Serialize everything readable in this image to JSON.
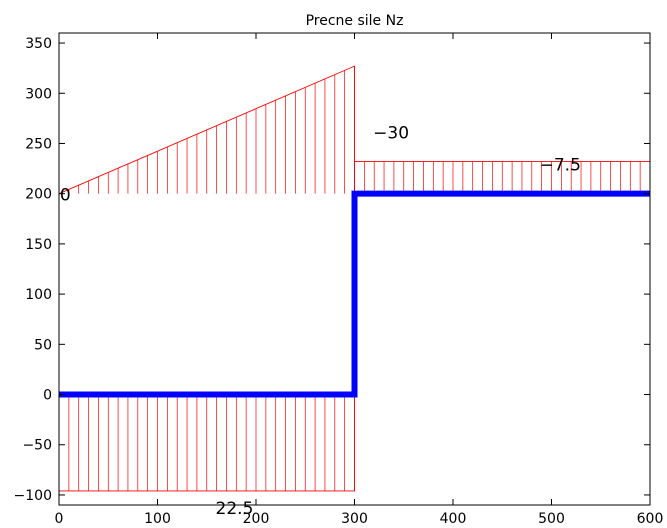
{
  "chart_data": {
    "type": "line",
    "title": "Precne sile Nz",
    "xlabel": "",
    "ylabel": "",
    "xlim": [
      0,
      600
    ],
    "ylim": [
      -110,
      360
    ],
    "x_ticks": [
      0,
      100,
      200,
      300,
      400,
      500,
      600
    ],
    "x_tick_labels": [
      "0",
      "100",
      "200",
      "300",
      "400",
      "500",
      "600"
    ],
    "y_ticks": [
      -100,
      -50,
      0,
      50,
      100,
      150,
      200,
      250,
      300,
      350
    ],
    "y_tick_labels": [
      "−100",
      "−50",
      "0",
      "50",
      "100",
      "150",
      "200",
      "250",
      "300",
      "350"
    ],
    "grid": false,
    "colors": {
      "structure": "#0000ff",
      "diagram": "#ff0000",
      "axes": "#000000"
    },
    "structure": {
      "name": "frame",
      "x": [
        0,
        300,
        300,
        600
      ],
      "y": [
        0,
        0,
        200,
        200
      ]
    },
    "diagrams": [
      {
        "baseline": 200,
        "x": [
          0,
          300
        ],
        "y": [
          200,
          327
        ],
        "hatch_step": 10
      },
      {
        "baseline": 200,
        "x": [
          300,
          600
        ],
        "y": [
          232,
          232
        ],
        "hatch_step": 10
      },
      {
        "baseline": 0,
        "x": [
          0,
          300
        ],
        "y": [
          -96,
          -96
        ],
        "hatch_step": 10
      }
    ],
    "annotations": [
      {
        "text": "0",
        "x": 5,
        "y": 199
      },
      {
        "text": "−30",
        "x": 323,
        "y": 261
      },
      {
        "text": "−7.5",
        "x": 492,
        "y": 229
      },
      {
        "text": "22.5",
        "x": 163,
        "y": -113
      }
    ]
  }
}
